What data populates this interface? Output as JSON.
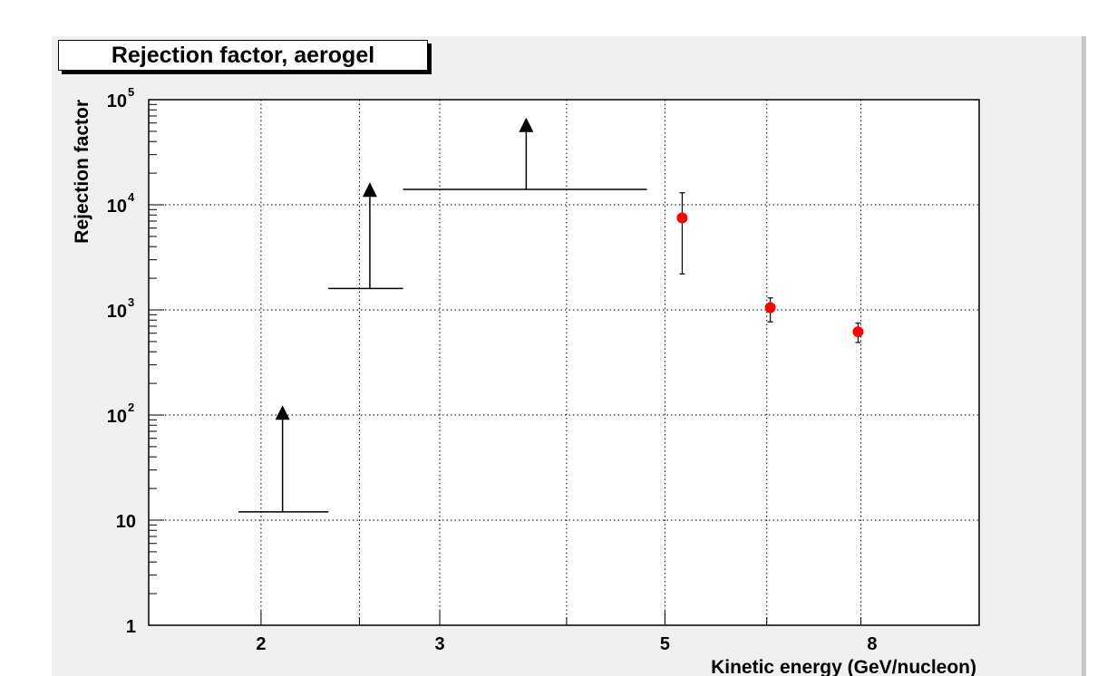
{
  "chart_data": {
    "type": "scatter",
    "title": "Rejection factor, aerogel",
    "xlabel": "Kinetic energy (GeV/nucleon)",
    "ylabel": "Rejection factor",
    "x_scale": "log",
    "y_scale": "log",
    "xlim": [
      1.55,
      10.2
    ],
    "ylim": [
      1,
      100000
    ],
    "grid": true,
    "x_ticks": [
      {
        "value": 2,
        "label": "2"
      },
      {
        "value": 3,
        "label": "3"
      },
      {
        "value": 5,
        "label": "5"
      },
      {
        "value": 8,
        "label": "8"
      }
    ],
    "x_grid": [
      2,
      2.5,
      3,
      4,
      5,
      6.3,
      7.8
    ],
    "y_ticks": [
      {
        "value": 1,
        "mantissa": "1",
        "exp": ""
      },
      {
        "value": 10,
        "mantissa": "10",
        "exp": ""
      },
      {
        "value": 100,
        "mantissa": "10",
        "exp": "2"
      },
      {
        "value": 1000,
        "mantissa": "10",
        "exp": "3"
      },
      {
        "value": 10000,
        "mantissa": "10",
        "exp": "4"
      },
      {
        "value": 100000,
        "mantissa": "10",
        "exp": "5"
      }
    ],
    "lower_limits": [
      {
        "x": 2.1,
        "xmin": 1.9,
        "xmax": 2.33,
        "y": 12,
        "arrow_to": 110
      },
      {
        "x": 2.56,
        "xmin": 2.33,
        "xmax": 2.76,
        "y": 1600,
        "arrow_to": 14500
      },
      {
        "x": 3.65,
        "xmin": 2.76,
        "xmax": 4.8,
        "y": 14000,
        "arrow_to": 60000
      }
    ],
    "points": [
      {
        "x": 5.2,
        "y": 7500,
        "ylow": 2200,
        "yhigh": 13000
      },
      {
        "x": 6.35,
        "y": 1050,
        "ylow": 770,
        "yhigh": 1300
      },
      {
        "x": 7.75,
        "y": 620,
        "ylow": 490,
        "yhigh": 750
      }
    ],
    "limit_color": "#000000",
    "point_color": "#ff0000"
  }
}
